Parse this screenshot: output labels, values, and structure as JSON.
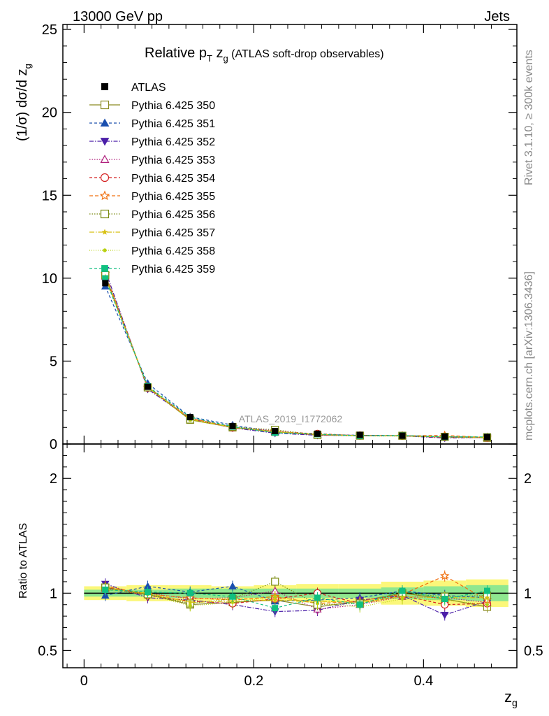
{
  "header": {
    "left": "13000 GeV pp",
    "right": "Jets"
  },
  "side_labels": {
    "rivet": "Rivet 3.1.10, ≥ 300k events",
    "mcplots": "mcplots.cern.ch [arXiv:1306.3436]"
  },
  "chart_data": {
    "type": "line",
    "title": "Relative p_T z_g (ATLAS soft-drop observables)",
    "title_parts": {
      "main": "Relative p",
      "sub1": "T",
      "mid": " z",
      "sub2": "g",
      "rest": " (ATLAS soft-drop observables)"
    },
    "watermark": "ATLAS_2019_I1772062",
    "ylabel": "(1/σ) dσ/d z_g",
    "ylabel_parts": {
      "main": "(1/σ) dσ/d z",
      "sub": "g"
    },
    "xlabel": "z_g",
    "xlabel_parts": {
      "main": "z",
      "sub": "g"
    },
    "ratio_ylabel": "Ratio to ATLAS",
    "xlim": [
      -0.025,
      0.51
    ],
    "ylim": [
      0,
      25.3
    ],
    "ratio_ylim": [
      0.35,
      2.3
    ],
    "x_ticks": [
      0,
      0.2,
      0.4
    ],
    "x_tick_labels": [
      "0",
      "0.2",
      "0.4"
    ],
    "y_ticks": [
      0,
      5,
      10,
      15,
      20,
      25
    ],
    "y_tick_labels": [
      "0",
      "5",
      "10",
      "15",
      "20",
      "25"
    ],
    "ratio_ticks": [
      0.5,
      1,
      2
    ],
    "ratio_tick_labels": [
      "0.5",
      "1",
      "2"
    ],
    "legend_position": "top-left",
    "x": [
      0.025,
      0.075,
      0.125,
      0.175,
      0.225,
      0.275,
      0.325,
      0.375,
      0.425,
      0.475
    ],
    "bin_edges": [
      0.0,
      0.05,
      0.1,
      0.15,
      0.2,
      0.25,
      0.3,
      0.35,
      0.4,
      0.45,
      0.5
    ],
    "data": {
      "name": "ATLAS",
      "values": [
        9.7,
        3.45,
        1.62,
        1.08,
        0.78,
        0.62,
        0.55,
        0.5,
        0.45,
        0.42
      ],
      "band_inner": [
        0.03,
        0.03,
        0.04,
        0.04,
        0.04,
        0.04,
        0.04,
        0.05,
        0.06,
        0.07
      ],
      "band_outer": [
        0.06,
        0.07,
        0.07,
        0.06,
        0.07,
        0.08,
        0.08,
        0.1,
        0.11,
        0.12
      ]
    },
    "series": [
      {
        "name": "Pythia 6.425 350",
        "color": "#8a8a22",
        "marker": "square-open",
        "dash": "",
        "ratio": [
          1.05,
          0.99,
          0.9,
          0.92,
          0.94,
          0.88,
          0.93,
          1.0,
          0.95,
          0.88
        ]
      },
      {
        "name": "Pythia 6.425 351",
        "color": "#1a4fae",
        "marker": "triangle-up-filled",
        "dash": "4,3",
        "ratio": [
          0.98,
          1.06,
          1.01,
          1.06,
          0.93,
          0.94,
          0.96,
          1.02,
          0.98,
          0.96
        ]
      },
      {
        "name": "Pythia 6.425 352",
        "color": "#4b1fa8",
        "marker": "triangle-down-filled",
        "dash": "6,2,1.5,2",
        "ratio": [
          1.08,
          0.96,
          0.94,
          0.9,
          0.84,
          0.85,
          0.94,
          0.98,
          0.81,
          0.93
        ]
      },
      {
        "name": "Pythia 6.425 353",
        "color": "#b0207d",
        "marker": "triangle-up-open",
        "dash": "1.5,2",
        "ratio": [
          1.04,
          1.0,
          0.95,
          0.96,
          1.02,
          0.86,
          0.9,
          0.97,
          0.96,
          0.92
        ]
      },
      {
        "name": "Pythia 6.425 354",
        "color": "#d42020",
        "marker": "circle-open",
        "dash": "4,3",
        "ratio": [
          1.05,
          0.98,
          0.93,
          0.91,
          0.95,
          1.0,
          0.91,
          0.98,
          0.9,
          0.91
        ]
      },
      {
        "name": "Pythia 6.425 355",
        "color": "#f07010",
        "marker": "star-open",
        "dash": "5,3",
        "ratio": [
          1.06,
          0.99,
          0.96,
          0.94,
          0.97,
          0.91,
          0.93,
          0.99,
          1.15,
          0.94
        ]
      },
      {
        "name": "Pythia 6.425 356",
        "color": "#7a8a10",
        "marker": "square-open",
        "dash": "1.5,2",
        "ratio": [
          1.05,
          0.99,
          0.91,
          0.95,
          1.1,
          0.9,
          0.91,
          1.0,
          0.97,
          0.98
        ]
      },
      {
        "name": "Pythia 6.425 357",
        "color": "#d8c010",
        "marker": "star-small",
        "dash": "7,2,1.5,2",
        "ratio": [
          1.04,
          1.0,
          0.92,
          0.93,
          0.94,
          0.93,
          0.92,
          0.97,
          0.96,
          0.96
        ]
      },
      {
        "name": "Pythia 6.425 358",
        "color": "#b8d010",
        "marker": "dot",
        "dash": "1,2",
        "ratio": [
          1.03,
          0.99,
          0.89,
          0.92,
          0.97,
          0.91,
          0.88,
          0.95,
          0.94,
          0.9
        ]
      },
      {
        "name": "Pythia 6.425 359",
        "color": "#10c080",
        "marker": "square-filled",
        "dash": "4,3",
        "ratio": [
          1.03,
          1.01,
          1.0,
          0.97,
          0.87,
          0.96,
          0.9,
          1.02,
          0.95,
          1.02
        ]
      }
    ]
  }
}
